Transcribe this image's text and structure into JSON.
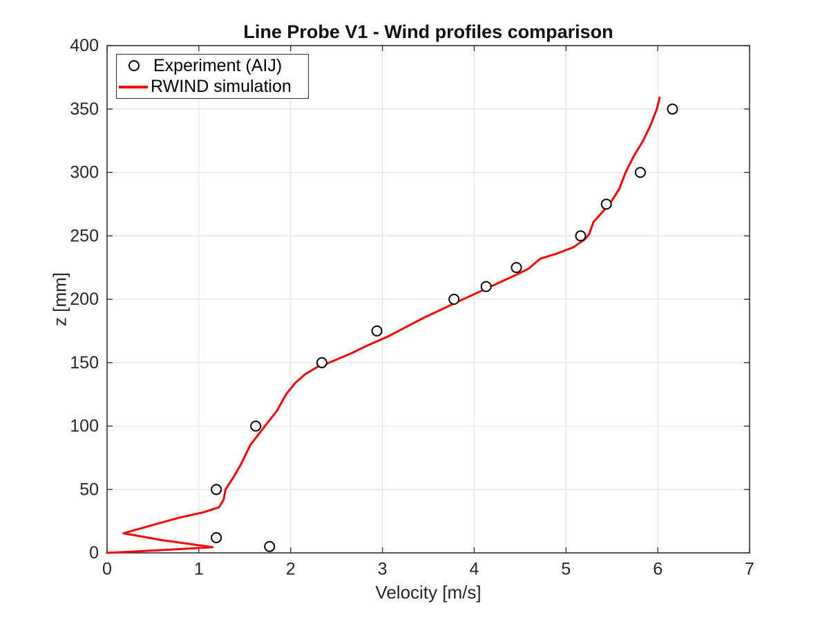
{
  "chart_data": {
    "type": "line",
    "title": "Line Probe V1 - Wind profiles comparison",
    "xlabel": "Velocity [m/s]",
    "ylabel": "z [mm]",
    "xlim": [
      0,
      7
    ],
    "ylim": [
      0,
      400
    ],
    "x_ticks": [
      0,
      1,
      2,
      3,
      4,
      5,
      6,
      7
    ],
    "y_ticks": [
      0,
      50,
      100,
      150,
      200,
      250,
      300,
      350,
      400
    ],
    "grid": true,
    "legend_position": "top-left",
    "style": {
      "background": "#FFFFFF",
      "grid_color": "#E2E2E2",
      "axis_color": "#262626",
      "marker_fill": "#FFFFFF"
    },
    "series": [
      {
        "name": "Experiment (AIJ)",
        "type": "scatter",
        "marker": "open-circle",
        "color": "#000000",
        "points": [
          [
            1.77,
            5
          ],
          [
            1.19,
            12
          ],
          [
            1.19,
            50
          ],
          [
            1.62,
            100
          ],
          [
            2.34,
            150
          ],
          [
            2.94,
            175
          ],
          [
            3.78,
            200
          ],
          [
            4.13,
            210
          ],
          [
            4.46,
            225
          ],
          [
            5.16,
            250
          ],
          [
            5.44,
            275
          ],
          [
            5.81,
            300
          ],
          [
            6.16,
            350
          ]
        ]
      },
      {
        "name": "RWIND simulation",
        "type": "line",
        "color": "#FF0000",
        "points": [
          [
            0,
            0
          ],
          [
            0.62,
            2.3
          ],
          [
            1.15,
            4.5
          ],
          [
            0.6,
            10
          ],
          [
            0.18,
            15.5
          ],
          [
            0.5,
            22
          ],
          [
            0.8,
            28
          ],
          [
            1.05,
            32
          ],
          [
            1.22,
            36
          ],
          [
            1.27,
            42
          ],
          [
            1.29,
            50
          ],
          [
            1.38,
            60
          ],
          [
            1.46,
            70
          ],
          [
            1.56,
            85
          ],
          [
            1.72,
            100
          ],
          [
            1.85,
            112
          ],
          [
            1.95,
            125
          ],
          [
            2.05,
            134
          ],
          [
            2.16,
            141
          ],
          [
            2.3,
            147
          ],
          [
            2.42,
            150
          ],
          [
            2.65,
            157
          ],
          [
            2.82,
            163
          ],
          [
            3.07,
            171
          ],
          [
            3.44,
            185
          ],
          [
            3.82,
            198
          ],
          [
            4.18,
            210
          ],
          [
            4.45,
            219
          ],
          [
            4.59,
            224
          ],
          [
            4.72,
            232
          ],
          [
            4.9,
            236
          ],
          [
            5.01,
            239
          ],
          [
            5.08,
            241
          ],
          [
            5.2,
            247
          ],
          [
            5.25,
            251
          ],
          [
            5.28,
            257
          ],
          [
            5.3,
            261
          ],
          [
            5.35,
            265
          ],
          [
            5.4,
            269
          ],
          [
            5.46,
            274
          ],
          [
            5.52,
            280
          ],
          [
            5.58,
            287
          ],
          [
            5.65,
            300
          ],
          [
            5.74,
            313
          ],
          [
            5.84,
            325
          ],
          [
            5.92,
            337
          ],
          [
            5.99,
            350
          ],
          [
            6.02,
            359
          ]
        ]
      }
    ]
  }
}
